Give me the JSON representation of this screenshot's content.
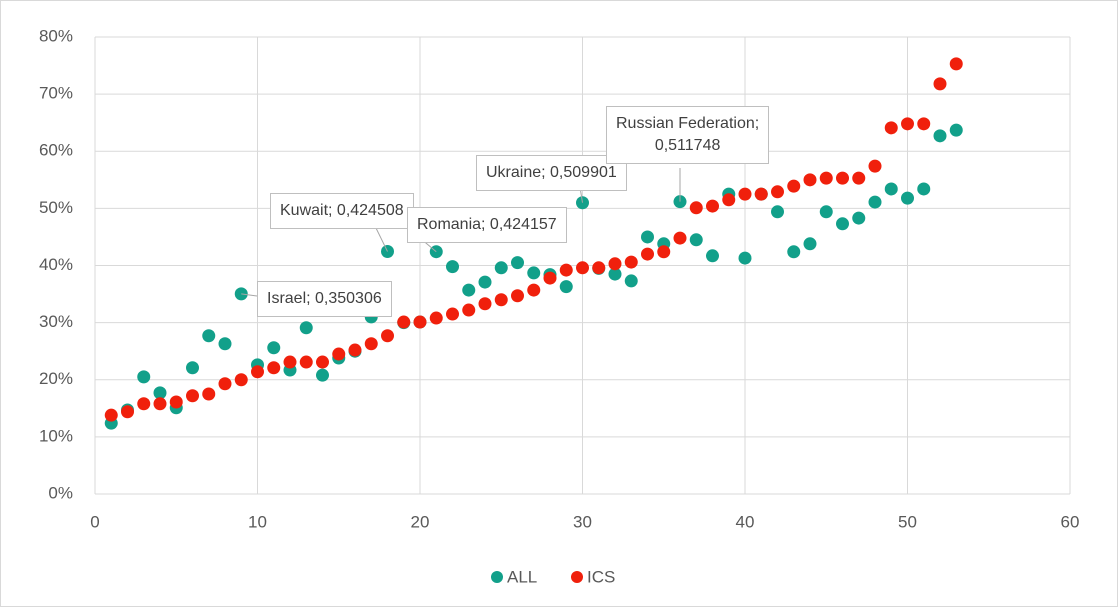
{
  "chart_data": {
    "type": "scatter",
    "xlim": [
      0,
      60
    ],
    "xticks": [
      0,
      10,
      20,
      30,
      40,
      50,
      60
    ],
    "ylim": [
      0,
      80
    ],
    "yticks": [
      {
        "value": 0,
        "label": "0%"
      },
      {
        "value": 10,
        "label": "10%"
      },
      {
        "value": 20,
        "label": "20%"
      },
      {
        "value": 30,
        "label": "30%"
      },
      {
        "value": 40,
        "label": "40%"
      },
      {
        "value": 50,
        "label": "50%"
      },
      {
        "value": 60,
        "label": "60%"
      },
      {
        "value": 70,
        "label": "70%"
      },
      {
        "value": 80,
        "label": "80%"
      }
    ],
    "grid": true,
    "legend": "bottom",
    "x": [
      1,
      2,
      3,
      4,
      5,
      6,
      7,
      8,
      9,
      10,
      11,
      12,
      13,
      14,
      15,
      16,
      17,
      18,
      19,
      20,
      21,
      22,
      23,
      24,
      25,
      26,
      27,
      28,
      29,
      30,
      31,
      32,
      33,
      34,
      35,
      36,
      37,
      38,
      39,
      40,
      41,
      42,
      43,
      44,
      45,
      46,
      47,
      48,
      49,
      50,
      51,
      52,
      53
    ],
    "series": [
      {
        "name": "ALL",
        "color": "#12a08a",
        "values": [
          12.4,
          14.7,
          20.5,
          17.7,
          15.1,
          22.1,
          27.7,
          26.3,
          35.0306,
          22.6,
          25.6,
          21.7,
          29.1,
          20.8,
          23.8,
          25,
          31.0,
          42.4508,
          30,
          30.1,
          42.4157,
          39.8,
          35.7,
          37.1,
          39.6,
          40.5,
          38.7,
          38.4,
          36.3,
          50.9901,
          39.5,
          38.5,
          37.3,
          45.0,
          43.8,
          51.1748,
          44.5,
          41.7,
          52.5,
          41.3,
          52.5,
          49.4,
          42.4,
          43.8,
          49.4,
          47.3,
          48.3,
          51.1,
          53.4,
          51.8,
          53.4,
          62.7,
          63.7
        ],
        "value_labels": [
          null,
          null,
          null,
          null,
          null,
          null,
          null,
          null,
          "Israel; 0,350306",
          null,
          null,
          null,
          null,
          null,
          null,
          null,
          null,
          "Kuwait; 0,424508",
          null,
          null,
          "Romania;  0,424157",
          null,
          null,
          null,
          null,
          null,
          null,
          null,
          null,
          "Ukraine;  0,509901",
          null,
          null,
          null,
          null,
          null,
          "Russian Federation;\n0,511748",
          null,
          null,
          null,
          null,
          null,
          null,
          null,
          null,
          null,
          null,
          null,
          null,
          null,
          null,
          null,
          null,
          null
        ]
      },
      {
        "name": "ICS",
        "color": "#f0200c",
        "values": [
          13.8,
          14.4,
          15.8,
          15.8,
          16.1,
          17.2,
          17.5,
          19.3,
          20.0,
          21.4,
          22.1,
          23.1,
          23.1,
          23.1,
          24.5,
          25.2,
          26.3,
          27.7,
          30.1,
          30.1,
          30.8,
          31.5,
          32.2,
          33.3,
          34.0,
          34.7,
          35.7,
          37.8,
          39.2,
          39.6,
          39.6,
          40.3,
          40.6,
          42.0,
          42.4,
          44.8,
          50.1,
          50.4,
          51.5,
          52.5,
          52.5,
          52.9,
          53.9,
          55.0,
          55.3,
          55.3,
          55.3,
          57.4,
          64.1,
          64.8,
          64.8,
          71.8,
          75.3
        ]
      }
    ]
  }
}
